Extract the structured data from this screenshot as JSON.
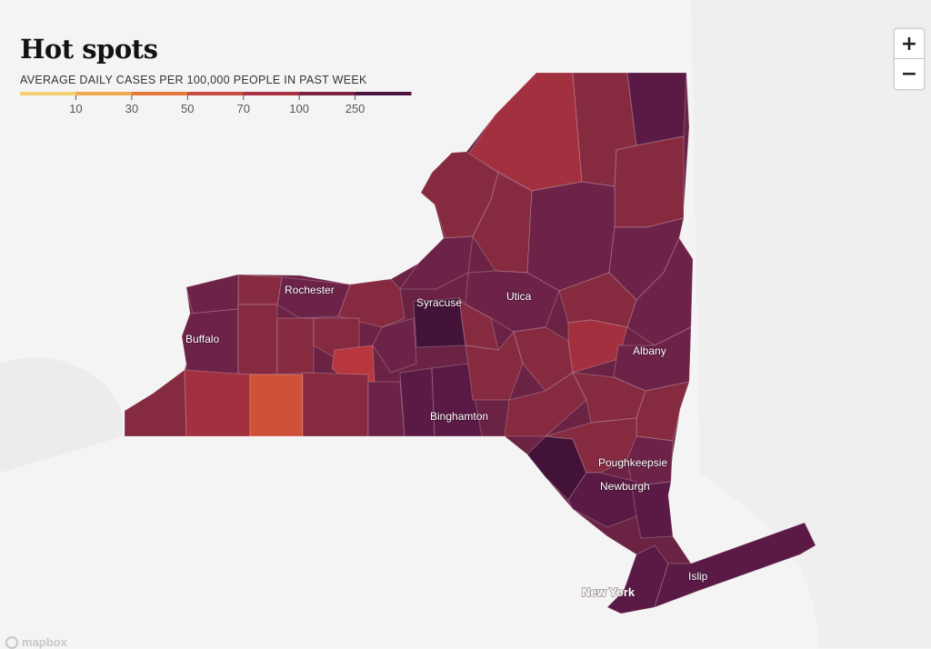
{
  "title": "Hot spots",
  "subtitle": "AVERAGE DAILY CASES PER 100,000 PEOPLE IN PAST WEEK",
  "legend": {
    "ticks": [
      "10",
      "30",
      "50",
      "70",
      "100",
      "250"
    ],
    "colors": [
      "#f2cf75",
      "#efa94f",
      "#e3793b",
      "#c84a40",
      "#a83244",
      "#7c2245",
      "#4a1440"
    ]
  },
  "zoom": {
    "in_label": "+",
    "out_label": "−"
  },
  "cities": {
    "rochester": "Rochester",
    "buffalo": "Buffalo",
    "syracuse": "Syracuse",
    "utica": "Utica",
    "albany": "Albany",
    "binghamton": "Binghamton",
    "poughkeepsie": "Poughkeepsie",
    "newburgh": "Newburgh",
    "new_york": "New York",
    "islip": "Islip"
  },
  "attribution": "mapbox",
  "state_color": "#6b2344",
  "county_colors": {
    "darkest": "#431239",
    "dark": "#5a1a45",
    "purple": "#6d2247",
    "red_dark": "#862a40",
    "red": "#a3303f",
    "red_light": "#b8373e",
    "orange": "#d0503a"
  }
}
